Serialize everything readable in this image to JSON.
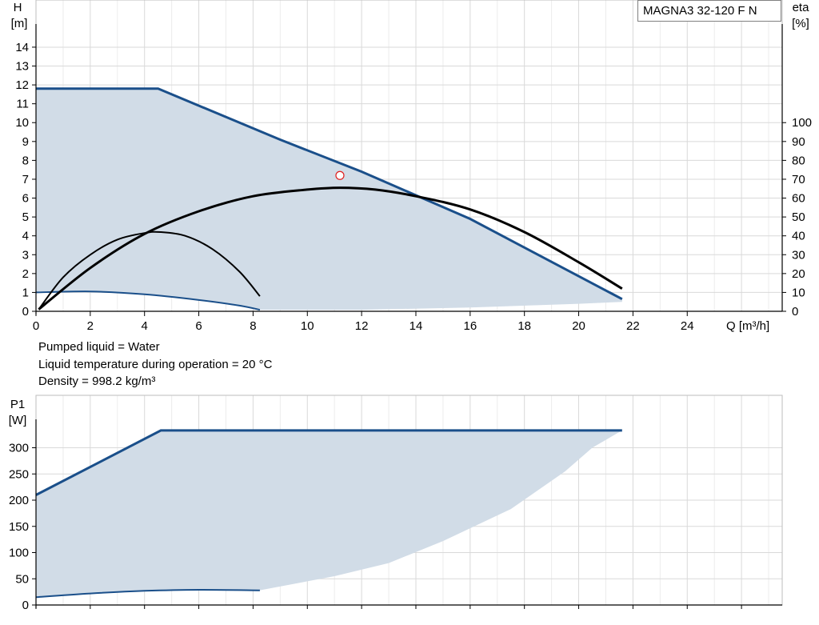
{
  "model_label": "MAGNA3 32-120 F N",
  "info": {
    "line1": "Pumped liquid = Water",
    "line2": "Liquid temperature during operation = 20 °C",
    "line3": "Density = 998.2 kg/m³"
  },
  "colors": {
    "curve_blue": "#1a4f8a",
    "fill_blue": "#d1dce7",
    "grid": "#d9d9d9",
    "efficiency_black": "#000000",
    "duty_point": "#e02020"
  },
  "chart_data": [
    {
      "id": "head",
      "type": "line",
      "ylabel_top": "H",
      "ylabel_unit": "[m]",
      "y2label_top": "eta",
      "y2label_unit": "[%]",
      "xlabel": "Q [m³/h]",
      "xlim": [
        0,
        27.5
      ],
      "ylim": [
        0,
        16.5
      ],
      "xticks": [
        0,
        2,
        4,
        6,
        8,
        10,
        12,
        14,
        16,
        18,
        20,
        22,
        24
      ],
      "yticks": [
        0,
        1,
        2,
        3,
        4,
        5,
        6,
        7,
        8,
        9,
        10,
        11,
        12,
        13,
        14
      ],
      "y2ticks": [
        0,
        10,
        20,
        30,
        40,
        50,
        60,
        70,
        80,
        90,
        100
      ],
      "y2_scale": "10 % per 1 m",
      "grid": true,
      "series": [
        {
          "role": "max_head",
          "color": "curve_blue",
          "x": [
            0,
            4.5,
            9.0,
            12.0,
            16.0,
            21.6
          ],
          "y": [
            11.8,
            11.8,
            9.1,
            7.4,
            4.9,
            0.65
          ]
        },
        {
          "role": "min_head",
          "color": "curve_blue",
          "x": [
            0,
            2.0,
            4.0,
            6.0,
            7.5,
            8.25
          ],
          "y": [
            1.0,
            1.05,
            0.9,
            0.6,
            0.3,
            0.08
          ]
        },
        {
          "role": "min_operating_boundary",
          "color": "fill_blue",
          "x": [
            8.25,
            12.0,
            16.0,
            20.0,
            21.6
          ],
          "y": [
            0.0,
            0.08,
            0.2,
            0.4,
            0.5
          ]
        },
        {
          "role": "efficiency_max",
          "color": "efficiency_black",
          "x": [
            0.1,
            2.0,
            4.0,
            6.0,
            8.0,
            10.0,
            11.2,
            12.5,
            14.0,
            16.0,
            18.0,
            20.0,
            21.6
          ],
          "y": [
            0.1,
            2.3,
            4.1,
            5.3,
            6.1,
            6.45,
            6.55,
            6.45,
            6.1,
            5.4,
            4.2,
            2.6,
            1.2
          ]
        },
        {
          "role": "efficiency_min",
          "color": "efficiency_black",
          "x": [
            0.1,
            1.0,
            2.0,
            3.0,
            4.0,
            4.6,
            5.5,
            6.5,
            7.5,
            8.25
          ],
          "y": [
            0.1,
            1.8,
            3.0,
            3.8,
            4.15,
            4.2,
            4.0,
            3.3,
            2.1,
            0.8
          ]
        }
      ],
      "duty_point": {
        "x": 11.2,
        "y": 7.2
      }
    },
    {
      "id": "power",
      "type": "line",
      "ylabel_top": "P1",
      "ylabel_unit": "[W]",
      "xlim": [
        0,
        27.5
      ],
      "ylim": [
        0,
        400
      ],
      "yticks": [
        0,
        50,
        100,
        150,
        200,
        250,
        300
      ],
      "grid": true,
      "series": [
        {
          "role": "max_power",
          "color": "curve_blue",
          "x": [
            0,
            4.6,
            21.6
          ],
          "y": [
            210,
            333,
            333
          ]
        },
        {
          "role": "min_power",
          "color": "curve_blue",
          "x": [
            0,
            2.0,
            4.0,
            6.0,
            8.25
          ],
          "y": [
            15,
            22,
            27,
            29,
            28
          ]
        },
        {
          "role": "min_operating_boundary",
          "color": "fill_blue",
          "x": [
            8.25,
            11.0,
            13.0,
            15.0,
            17.5,
            19.5,
            20.5,
            21.6
          ],
          "y": [
            28,
            55,
            80,
            122,
            183,
            255,
            300,
            333
          ]
        }
      ]
    }
  ]
}
